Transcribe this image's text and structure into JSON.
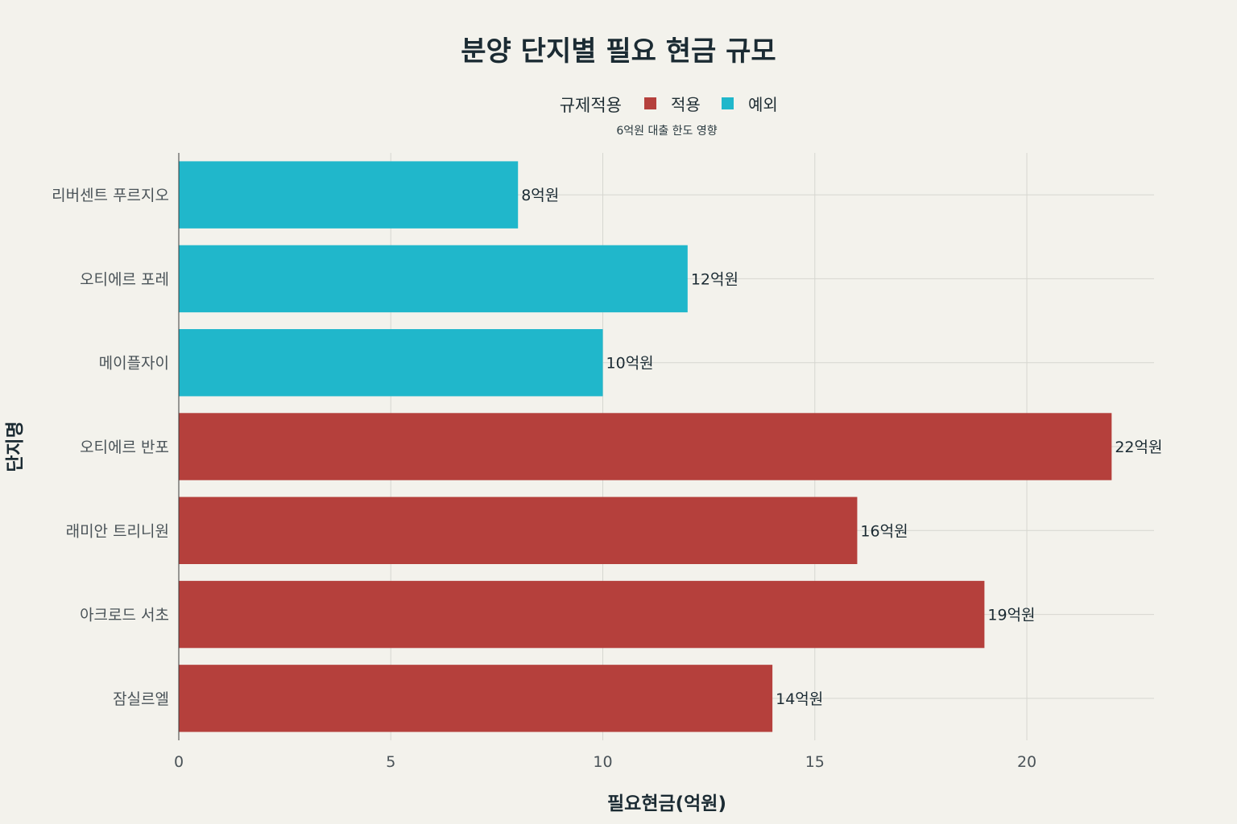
{
  "chart_data": {
    "type": "bar",
    "orientation": "horizontal",
    "title": "분양 단지별 필요 현금 규모",
    "subtitle": "6억원 대출 한도 영향",
    "xlabel": "필요현금(억원)",
    "ylabel": "단지명",
    "xlim": [
      0,
      23
    ],
    "xticks": [
      0,
      5,
      10,
      15,
      20
    ],
    "grid": true,
    "legend": {
      "title": "규제적용",
      "placement": "top-center",
      "entries": [
        {
          "name": "적용",
          "color": "#b5403c"
        },
        {
          "name": "예외",
          "color": "#20b7cb"
        }
      ]
    },
    "categories": [
      "리버센트 푸르지오",
      "오티에르 포레",
      "메이플자이",
      "오티에르 반포",
      "래미안 트리니원",
      "아크로드 서초",
      "잠실르엘"
    ],
    "values": [
      8,
      12,
      10,
      22,
      16,
      19,
      14
    ],
    "groups": [
      "예외",
      "예외",
      "예외",
      "적용",
      "적용",
      "적용",
      "적용"
    ],
    "data_labels": [
      "8억원",
      "12억원",
      "10억원",
      "22억원",
      "16억원",
      "19억원",
      "14억원"
    ]
  }
}
